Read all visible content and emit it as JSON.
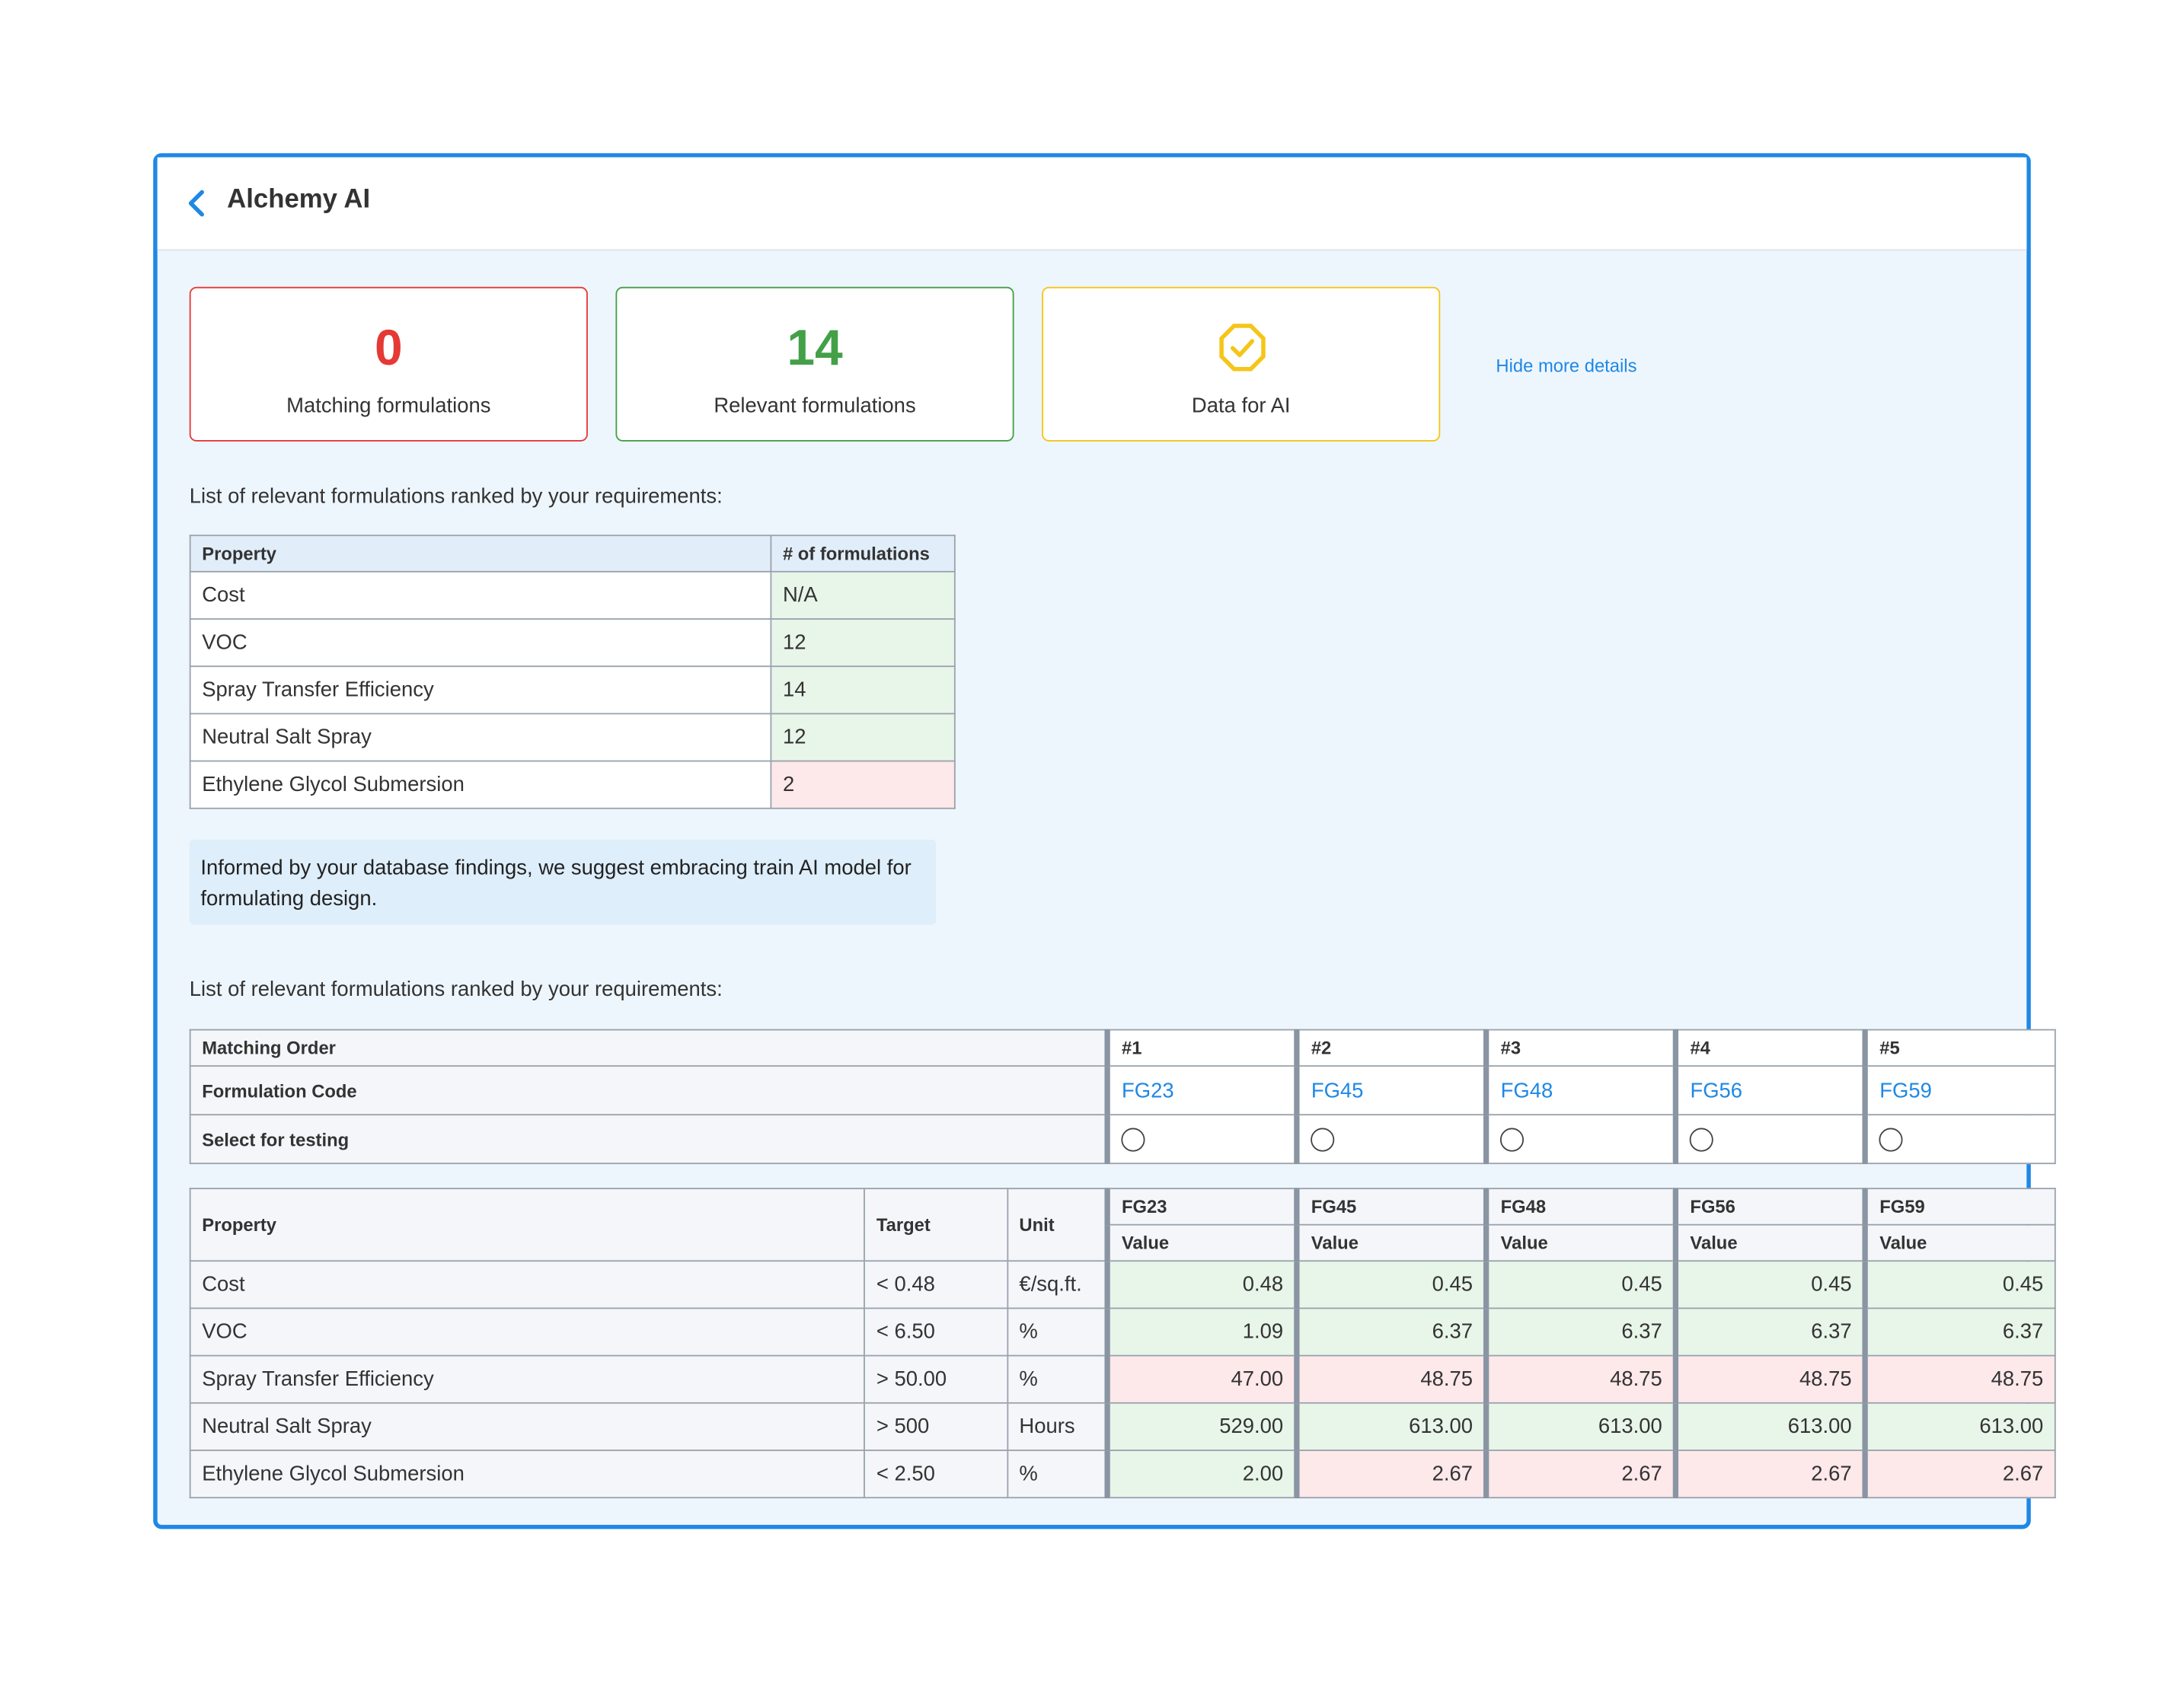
{
  "header": {
    "title": "Alchemy AI"
  },
  "cards": [
    {
      "value": "0",
      "label": "Matching formulations",
      "color": "#e53935"
    },
    {
      "value": "14",
      "label": "Relevant formulations",
      "color": "#43a047"
    },
    {
      "label": "Data for AI",
      "color": "#f5c518"
    }
  ],
  "hide_link": "Hide more details",
  "summary": {
    "heading": "List of relevant formulations ranked by your requirements:",
    "columns": [
      "Property",
      "# of formulations"
    ],
    "rows": [
      [
        "Cost",
        "N/A"
      ],
      [
        "VOC",
        "12"
      ],
      [
        "Spray Transfer Efficiency",
        "14"
      ],
      [
        "Neutral Salt Spray",
        "12"
      ],
      [
        "Ethylene Glycol Submersion",
        "2"
      ]
    ],
    "status": [
      "pass",
      "pass",
      "pass",
      "pass",
      "fail"
    ]
  },
  "note": "Informed by your database findings, we suggest embracing train AI model for formulating design.",
  "ranking": {
    "heading": "List of relevant formulations ranked by your requirements:",
    "row_labels": [
      "Matching Order",
      "Formulation Code",
      "Select for testing"
    ],
    "orders": [
      "#1",
      "#2",
      "#3",
      "#4",
      "#5"
    ],
    "codes": [
      "FG23",
      "FG45",
      "FG48",
      "FG56",
      "FG59"
    ]
  },
  "properties": {
    "columns": [
      "Property",
      "Target",
      "Unit"
    ],
    "value_header": "Value",
    "rows": [
      {
        "property": "Cost",
        "target": "< 0.48",
        "unit": "€/sq.ft.",
        "values": [
          "0.48",
          "0.45",
          "0.45",
          "0.45",
          "0.45"
        ],
        "status": [
          "pass",
          "pass",
          "pass",
          "pass",
          "pass"
        ]
      },
      {
        "property": "VOC",
        "target": "< 6.50",
        "unit": "%",
        "values": [
          "1.09",
          "6.37",
          "6.37",
          "6.37",
          "6.37"
        ],
        "status": [
          "pass",
          "pass",
          "pass",
          "pass",
          "pass"
        ]
      },
      {
        "property": "Spray Transfer Efficiency",
        "target": "> 50.00",
        "unit": "%",
        "values": [
          "47.00",
          "48.75",
          "48.75",
          "48.75",
          "48.75"
        ],
        "status": [
          "fail",
          "fail",
          "fail",
          "fail",
          "fail"
        ]
      },
      {
        "property": "Neutral Salt Spray",
        "target": "> 500",
        "unit": "Hours",
        "values": [
          "529.00",
          "613.00",
          "613.00",
          "613.00",
          "613.00"
        ],
        "status": [
          "pass",
          "pass",
          "pass",
          "pass",
          "pass"
        ]
      },
      {
        "property": "Ethylene Glycol Submersion",
        "target": "< 2.50",
        "unit": "%",
        "values": [
          "2.00",
          "2.67",
          "2.67",
          "2.67",
          "2.67"
        ],
        "status": [
          "pass",
          "fail",
          "fail",
          "fail",
          "fail"
        ]
      }
    ]
  }
}
